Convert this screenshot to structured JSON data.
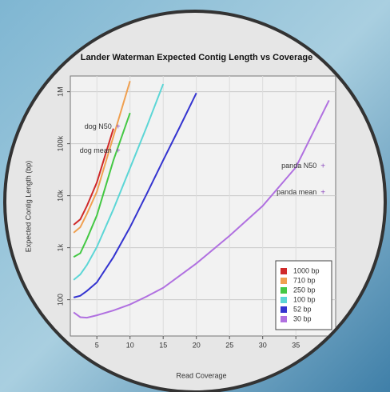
{
  "chart_data": {
    "type": "line",
    "title": "Lander Waterman Expected Contig Length vs Coverage",
    "x_label": "Read Coverage",
    "y_label": "Expected Contig Length (bp)",
    "x": [
      1.5,
      2.5,
      3.5,
      5,
      7.5,
      10,
      12.5,
      15,
      17.5,
      20,
      25,
      30,
      35,
      40
    ],
    "series": [
      {
        "name": "1000 bp",
        "color": "#d02a2a",
        "values": [
          2750,
          3500,
          6350,
          18000,
          195000,
          null,
          null,
          null,
          null,
          null,
          null,
          null,
          null,
          null
        ]
      },
      {
        "name": "710 bp",
        "color": "#f0a050",
        "values": [
          1940,
          2470,
          4470,
          11900,
          138000,
          1600000,
          null,
          null,
          null,
          null,
          null,
          null,
          null,
          null
        ]
      },
      {
        "name": "250 bp",
        "color": "#44c844",
        "values": [
          660,
          780,
          1470,
          4170,
          48000,
          390000,
          null,
          null,
          null,
          null,
          null,
          null,
          null,
          null
        ]
      },
      {
        "name": "100 bp",
        "color": "#5cd6d6",
        "values": [
          240,
          305,
          465,
          1030,
          5500,
          33800,
          209000,
          1400000,
          null,
          null,
          null,
          null,
          null,
          null
        ]
      },
      {
        "name": "52 bp",
        "color": "#3434d0",
        "values": [
          110,
          119,
          147,
          215,
          660,
          2470,
          10700,
          48000,
          209000,
          940000,
          null,
          null,
          null,
          null
        ]
      },
      {
        "name": "30 bp",
        "color": "#b070e0",
        "values": [
          57,
          46,
          45,
          50,
          62,
          81,
          115,
          169,
          290,
          497,
          1690,
          6350,
          35100,
          681000
        ]
      }
    ],
    "annotations": [
      {
        "text": "dog N50",
        "x": 8.2,
        "y": 209000
      },
      {
        "text": "dog mean",
        "x": 8.2,
        "y": 72000
      },
      {
        "text": "panda N50",
        "x": 39.1,
        "y": 37000
      },
      {
        "text": "panda mean",
        "x": 39.1,
        "y": 11500
      }
    ],
    "xlim": [
      1,
      41
    ],
    "xticks": [
      5,
      10,
      15,
      20,
      25,
      30,
      35
    ],
    "ylim": [
      20,
      2000000
    ],
    "log_y": true,
    "yticks": [
      100,
      {
        "value": 1000,
        "label": "1k"
      },
      {
        "value": 10000,
        "label": "10k"
      },
      {
        "value": 100000,
        "label": "100k"
      },
      {
        "value": 1000000,
        "label": "1M"
      }
    ],
    "grid": true,
    "legend": "bottom-right"
  }
}
